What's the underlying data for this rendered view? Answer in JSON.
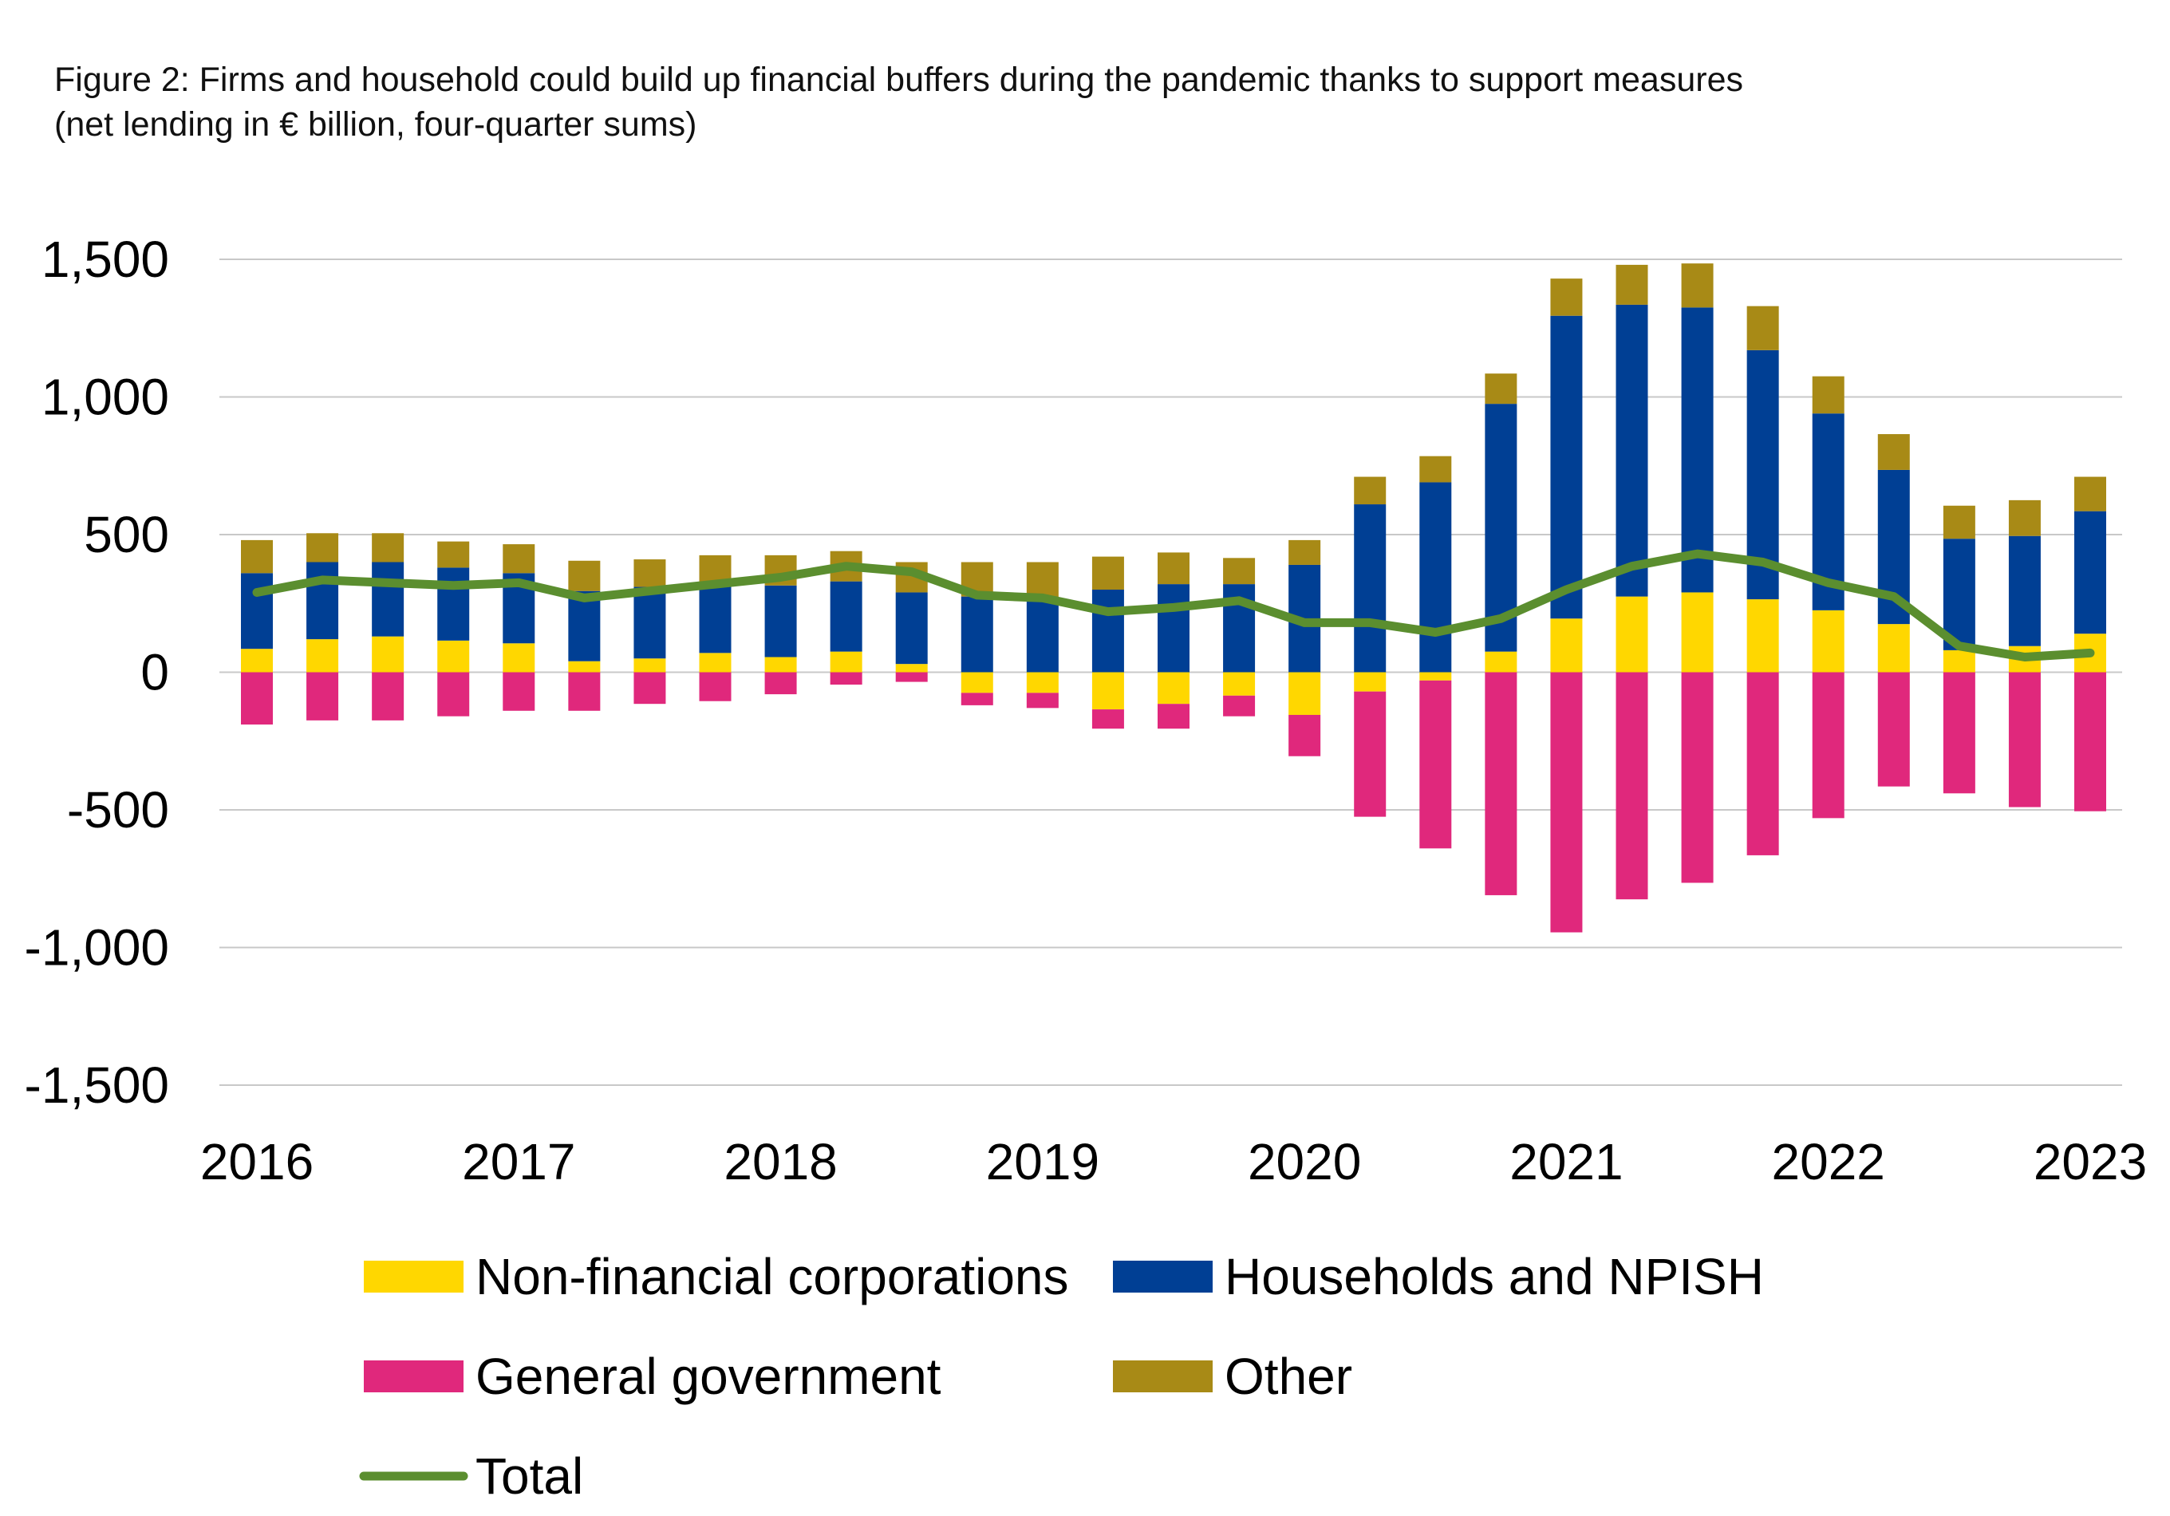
{
  "title_line1": "Figure 2: Firms and household could build up financial buffers during the pandemic thanks to support measures",
  "title_line2": "(net lending in € billion, four-quarter sums)",
  "chart_data": {
    "type": "bar",
    "stacked": true,
    "x": [
      "2016Q1",
      "2016Q2",
      "2016Q3",
      "2016Q4",
      "2017Q1",
      "2017Q2",
      "2017Q3",
      "2017Q4",
      "2018Q1",
      "2018Q2",
      "2018Q3",
      "2018Q4",
      "2019Q1",
      "2019Q2",
      "2019Q3",
      "2019Q4",
      "2020Q1",
      "2020Q2",
      "2020Q3",
      "2020Q4",
      "2021Q1",
      "2021Q2",
      "2021Q3",
      "2021Q4",
      "2022Q1",
      "2022Q2",
      "2022Q3",
      "2022Q4",
      "2023Q1"
    ],
    "x_tick_labels": [
      "2016",
      "2017",
      "2018",
      "2019",
      "2020",
      "2021",
      "2022",
      "2023"
    ],
    "y_ticks": [
      "1,500",
      "1,000",
      "500",
      "0",
      "-500",
      "-1,000",
      "-1,500"
    ],
    "ylim": [
      -1500,
      1500
    ],
    "grid": true,
    "legend_position": "bottom",
    "series": [
      {
        "name": "Non-financial corporations",
        "color": "#FFD700",
        "kind": "bar",
        "values": [
          85,
          120,
          130,
          115,
          105,
          40,
          50,
          70,
          55,
          75,
          30,
          -75,
          -75,
          -135,
          -115,
          -85,
          -155,
          -70,
          -30,
          75,
          195,
          275,
          290,
          265,
          225,
          175,
          80,
          95,
          140
        ]
      },
      {
        "name": "Households and NPISH",
        "color": "#003F94",
        "kind": "bar",
        "values": [
          275,
          280,
          270,
          265,
          255,
          255,
          260,
          255,
          260,
          255,
          260,
          275,
          270,
          300,
          320,
          320,
          390,
          610,
          690,
          900,
          1100,
          1060,
          1035,
          905,
          715,
          560,
          405,
          400,
          445
        ]
      },
      {
        "name": "General government",
        "color": "#E0287C",
        "kind": "bar",
        "values": [
          -190,
          -175,
          -175,
          -160,
          -140,
          -140,
          -115,
          -105,
          -80,
          -45,
          -35,
          -45,
          -55,
          -70,
          -90,
          -75,
          -150,
          -455,
          -610,
          -810,
          -945,
          -825,
          -765,
          -665,
          -530,
          -415,
          -440,
          -490,
          -505
        ]
      },
      {
        "name": "Other",
        "color": "#A88A16",
        "kind": "bar",
        "values": [
          120,
          105,
          105,
          95,
          105,
          110,
          100,
          100,
          110,
          110,
          110,
          125,
          130,
          120,
          115,
          95,
          90,
          100,
          95,
          110,
          135,
          145,
          160,
          160,
          135,
          130,
          120,
          130,
          125
        ]
      },
      {
        "name": "Total",
        "color": "#5B8E2F",
        "kind": "line",
        "values": [
          290,
          335,
          325,
          315,
          325,
          270,
          295,
          320,
          345,
          385,
          365,
          280,
          270,
          220,
          235,
          260,
          180,
          180,
          145,
          195,
          300,
          385,
          430,
          400,
          325,
          275,
          95,
          55,
          70
        ]
      }
    ]
  }
}
